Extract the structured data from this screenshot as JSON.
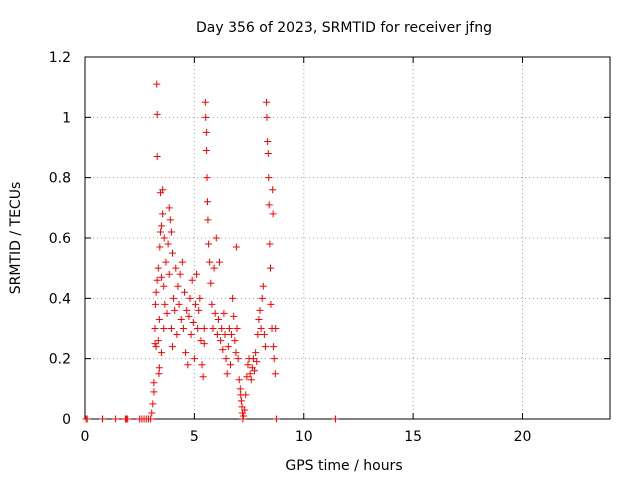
{
  "chart_data": {
    "type": "scatter",
    "title": "Day 356 of 2023, SRMTID for receiver jfng",
    "xlabel": "GPS time / hours",
    "ylabel": "SRMTID / TECUs",
    "xlim": [
      0,
      24
    ],
    "ylim": [
      0,
      1.2
    ],
    "x_ticks": [
      0,
      5,
      10,
      15,
      20
    ],
    "x_tick_labels": [
      "0",
      "5",
      "10",
      "15",
      "20"
    ],
    "y_ticks": [
      0,
      0.2,
      0.4,
      0.6,
      0.8,
      1,
      1.2
    ],
    "y_tick_labels": [
      "0",
      "0.2",
      "0.4",
      "0.6",
      "0.8",
      "1",
      "1.2"
    ],
    "grid": true,
    "marker": "+",
    "color": "#ff0000",
    "series": [
      {
        "name": "SRMTID",
        "points": [
          [
            0.05,
            0
          ],
          [
            0.1,
            0
          ],
          [
            0.8,
            0
          ],
          [
            1.4,
            0
          ],
          [
            1.85,
            0
          ],
          [
            1.9,
            0
          ],
          [
            1.95,
            0
          ],
          [
            2.5,
            0
          ],
          [
            2.6,
            0
          ],
          [
            2.7,
            0
          ],
          [
            2.8,
            0
          ],
          [
            2.9,
            0
          ],
          [
            3.0,
            0
          ],
          [
            3.05,
            0.02
          ],
          [
            3.1,
            0.05
          ],
          [
            3.15,
            0.09
          ],
          [
            3.15,
            0.12
          ],
          [
            3.2,
            0.25
          ],
          [
            3.2,
            0.3
          ],
          [
            3.22,
            0.38
          ],
          [
            3.25,
            0.42
          ],
          [
            3.25,
            0.24
          ],
          [
            3.28,
            1.11
          ],
          [
            3.3,
            1.01
          ],
          [
            3.3,
            0.87
          ],
          [
            3.3,
            0.46
          ],
          [
            3.35,
            0.5
          ],
          [
            3.35,
            0.26
          ],
          [
            3.38,
            0.15
          ],
          [
            3.4,
            0.17
          ],
          [
            3.4,
            0.33
          ],
          [
            3.42,
            0.57
          ],
          [
            3.45,
            0.62
          ],
          [
            3.45,
            0.75
          ],
          [
            3.5,
            0.64
          ],
          [
            3.5,
            0.47
          ],
          [
            3.5,
            0.22
          ],
          [
            3.55,
            0.76
          ],
          [
            3.55,
            0.68
          ],
          [
            3.6,
            0.44
          ],
          [
            3.6,
            0.3
          ],
          [
            3.62,
            0.6
          ],
          [
            3.65,
            0.38
          ],
          [
            3.7,
            0.52
          ],
          [
            3.75,
            0.35
          ],
          [
            3.8,
            0.58
          ],
          [
            3.85,
            0.7
          ],
          [
            3.85,
            0.48
          ],
          [
            3.9,
            0.66
          ],
          [
            3.95,
            0.62
          ],
          [
            3.95,
            0.3
          ],
          [
            4.0,
            0.55
          ],
          [
            4.0,
            0.24
          ],
          [
            4.05,
            0.4
          ],
          [
            4.1,
            0.36
          ],
          [
            4.15,
            0.5
          ],
          [
            4.2,
            0.28
          ],
          [
            4.25,
            0.44
          ],
          [
            4.3,
            0.38
          ],
          [
            4.35,
            0.48
          ],
          [
            4.4,
            0.33
          ],
          [
            4.45,
            0.52
          ],
          [
            4.5,
            0.3
          ],
          [
            4.55,
            0.42
          ],
          [
            4.6,
            0.22
          ],
          [
            4.65,
            0.36
          ],
          [
            4.7,
            0.18
          ],
          [
            4.75,
            0.34
          ],
          [
            4.8,
            0.4
          ],
          [
            4.85,
            0.28
          ],
          [
            4.9,
            0.46
          ],
          [
            4.95,
            0.32
          ],
          [
            5.0,
            0.2
          ],
          [
            5.05,
            0.38
          ],
          [
            5.1,
            0.48
          ],
          [
            5.15,
            0.3
          ],
          [
            5.2,
            0.36
          ],
          [
            5.25,
            0.4
          ],
          [
            5.3,
            0.26
          ],
          [
            5.35,
            0.18
          ],
          [
            5.4,
            0.14
          ],
          [
            5.45,
            0.3
          ],
          [
            5.45,
            0.25
          ],
          [
            5.5,
            1.05
          ],
          [
            5.52,
            1.0
          ],
          [
            5.55,
            0.89
          ],
          [
            5.55,
            0.95
          ],
          [
            5.58,
            0.8
          ],
          [
            5.6,
            0.72
          ],
          [
            5.62,
            0.66
          ],
          [
            5.65,
            0.58
          ],
          [
            5.7,
            0.52
          ],
          [
            5.75,
            0.45
          ],
          [
            5.8,
            0.38
          ],
          [
            5.85,
            0.3
          ],
          [
            5.9,
            0.5
          ],
          [
            5.95,
            0.35
          ],
          [
            6.0,
            0.6
          ],
          [
            6.05,
            0.28
          ],
          [
            6.1,
            0.33
          ],
          [
            6.15,
            0.52
          ],
          [
            6.2,
            0.26
          ],
          [
            6.25,
            0.3
          ],
          [
            6.3,
            0.23
          ],
          [
            6.35,
            0.35
          ],
          [
            6.4,
            0.28
          ],
          [
            6.45,
            0.2
          ],
          [
            6.5,
            0.15
          ],
          [
            6.55,
            0.24
          ],
          [
            6.6,
            0.3
          ],
          [
            6.65,
            0.18
          ],
          [
            6.7,
            0.28
          ],
          [
            6.75,
            0.4
          ],
          [
            6.8,
            0.34
          ],
          [
            6.85,
            0.26
          ],
          [
            6.9,
            0.22
          ],
          [
            6.92,
            0.57
          ],
          [
            6.95,
            0.3
          ],
          [
            7.0,
            0.2
          ],
          [
            7.05,
            0.13
          ],
          [
            7.1,
            0.1
          ],
          [
            7.12,
            0.08
          ],
          [
            7.15,
            0.06
          ],
          [
            7.18,
            0.04
          ],
          [
            7.2,
            0.02
          ],
          [
            7.22,
            0
          ],
          [
            7.25,
            0.01
          ],
          [
            7.3,
            0.03
          ],
          [
            7.35,
            0.08
          ],
          [
            7.4,
            0.14
          ],
          [
            7.45,
            0.18
          ],
          [
            7.5,
            0.2
          ],
          [
            7.55,
            0.15
          ],
          [
            7.6,
            0.13
          ],
          [
            7.65,
            0.17
          ],
          [
            7.7,
            0.2
          ],
          [
            7.75,
            0.16
          ],
          [
            7.8,
            0.22
          ],
          [
            7.85,
            0.19
          ],
          [
            7.9,
            0.28
          ],
          [
            7.95,
            0.33
          ],
          [
            8.0,
            0.36
          ],
          [
            8.05,
            0.3
          ],
          [
            8.1,
            0.4
          ],
          [
            8.15,
            0.44
          ],
          [
            8.2,
            0.28
          ],
          [
            8.25,
            0.24
          ],
          [
            8.3,
            1.05
          ],
          [
            8.32,
            1.0
          ],
          [
            8.35,
            0.92
          ],
          [
            8.38,
            0.88
          ],
          [
            8.4,
            0.8
          ],
          [
            8.42,
            0.71
          ],
          [
            8.45,
            0.58
          ],
          [
            8.48,
            0.5
          ],
          [
            8.5,
            0.38
          ],
          [
            8.55,
            0.3
          ],
          [
            8.58,
            0.76
          ],
          [
            8.6,
            0.68
          ],
          [
            8.62,
            0.24
          ],
          [
            8.65,
            0.2
          ],
          [
            8.7,
            0.15
          ],
          [
            8.72,
            0.3
          ],
          [
            8.75,
            0
          ],
          [
            11.45,
            0
          ]
        ]
      }
    ]
  }
}
